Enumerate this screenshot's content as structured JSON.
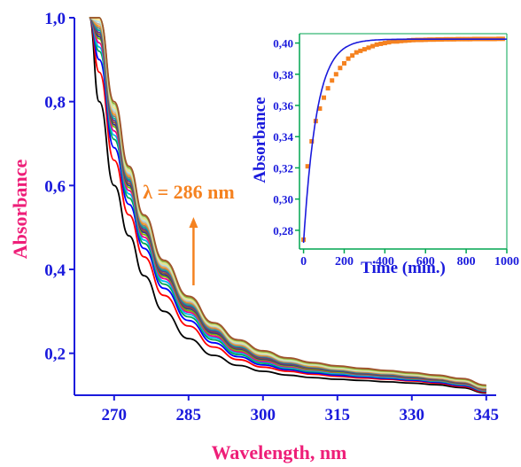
{
  "chart_data": [
    {
      "type": "line",
      "xlabel": "Wavelength, nm",
      "ylabel": "Absorbance",
      "xlim": [
        262,
        347
      ],
      "ylim": [
        0.1,
        1.0
      ],
      "xticks": [
        "270",
        "285",
        "300",
        "315",
        "330",
        "345"
      ],
      "yticks": [
        "0,2",
        "0,4",
        "0,6",
        "0,8",
        "1,0"
      ],
      "annotation": {
        "text": "λ = 286 nm",
        "x": 286,
        "arrow": "up"
      },
      "series_count": 19,
      "series": [
        {
          "color": "#000000",
          "x": [
            265,
            267,
            270,
            273,
            276,
            280,
            285,
            290,
            295,
            300,
            305,
            310,
            315,
            320,
            325,
            330,
            335,
            340,
            345
          ],
          "values": [
            1.0,
            0.8,
            0.6,
            0.48,
            0.385,
            0.3,
            0.235,
            0.195,
            0.171,
            0.157,
            0.148,
            0.142,
            0.138,
            0.135,
            0.132,
            0.129,
            0.125,
            0.118,
            0.105
          ]
        },
        {
          "color": "#ff0000",
          "x": [
            265,
            267,
            270,
            273,
            276,
            280,
            285,
            290,
            295,
            300,
            305,
            310,
            315,
            320,
            325,
            330,
            335,
            340,
            345
          ],
          "values": [
            1.0,
            0.87,
            0.66,
            0.53,
            0.43,
            0.338,
            0.265,
            0.215,
            0.185,
            0.167,
            0.157,
            0.15,
            0.145,
            0.141,
            0.138,
            0.134,
            0.129,
            0.121,
            0.107
          ]
        },
        {
          "color": "#0000ff",
          "x": [
            265,
            267,
            270,
            273,
            276,
            280,
            285,
            290,
            295,
            300,
            305,
            310,
            315,
            320,
            325,
            330,
            335,
            340,
            345
          ],
          "values": [
            1.0,
            0.9,
            0.69,
            0.555,
            0.45,
            0.355,
            0.278,
            0.225,
            0.192,
            0.172,
            0.161,
            0.153,
            0.148,
            0.144,
            0.14,
            0.136,
            0.131,
            0.123,
            0.109
          ]
        },
        {
          "color": "#00a651",
          "x": [
            265,
            267,
            270,
            273,
            276,
            280,
            285,
            290,
            295,
            300,
            305,
            310,
            315,
            320,
            325,
            330,
            335,
            340,
            345
          ],
          "values": [
            1.0,
            0.92,
            0.71,
            0.57,
            0.462,
            0.365,
            0.287,
            0.232,
            0.197,
            0.176,
            0.164,
            0.156,
            0.151,
            0.146,
            0.142,
            0.138,
            0.133,
            0.125,
            0.11
          ]
        },
        {
          "color": "#00b7eb",
          "x": [
            265,
            267,
            270,
            273,
            276,
            280,
            285,
            290,
            295,
            300,
            305,
            310,
            315,
            320,
            325,
            330,
            335,
            340,
            345
          ],
          "values": [
            1.0,
            0.93,
            0.72,
            0.58,
            0.47,
            0.372,
            0.293,
            0.237,
            0.201,
            0.179,
            0.166,
            0.158,
            0.152,
            0.147,
            0.143,
            0.139,
            0.134,
            0.126,
            0.111
          ]
        },
        {
          "color": "#ec008c",
          "x": [
            265,
            267,
            270,
            273,
            276,
            280,
            285,
            290,
            295,
            300,
            305,
            310,
            315,
            320,
            325,
            330,
            335,
            340,
            345
          ],
          "values": [
            1.0,
            0.94,
            0.73,
            0.588,
            0.477,
            0.378,
            0.298,
            0.241,
            0.204,
            0.181,
            0.168,
            0.16,
            0.154,
            0.149,
            0.145,
            0.14,
            0.135,
            0.127,
            0.112
          ]
        },
        {
          "color": "#7fb800",
          "x": [
            265,
            267,
            270,
            273,
            276,
            280,
            285,
            290,
            295,
            300,
            305,
            310,
            315,
            320,
            325,
            330,
            335,
            340,
            345
          ],
          "values": [
            1.0,
            0.95,
            0.74,
            0.595,
            0.483,
            0.383,
            0.302,
            0.245,
            0.207,
            0.184,
            0.17,
            0.161,
            0.155,
            0.15,
            0.146,
            0.141,
            0.136,
            0.128,
            0.113
          ]
        },
        {
          "color": "#2e3192",
          "x": [
            265,
            267,
            270,
            273,
            276,
            280,
            285,
            290,
            295,
            300,
            305,
            310,
            315,
            320,
            325,
            330,
            335,
            340,
            345
          ],
          "values": [
            1.0,
            0.955,
            0.745,
            0.6,
            0.488,
            0.387,
            0.306,
            0.248,
            0.21,
            0.186,
            0.172,
            0.163,
            0.157,
            0.151,
            0.147,
            0.142,
            0.137,
            0.129,
            0.114
          ]
        },
        {
          "color": "#8b5a2b",
          "x": [
            265,
            267,
            270,
            273,
            276,
            280,
            285,
            290,
            295,
            300,
            305,
            310,
            315,
            320,
            325,
            330,
            335,
            340,
            345
          ],
          "values": [
            1.0,
            0.96,
            0.75,
            0.605,
            0.492,
            0.391,
            0.309,
            0.251,
            0.212,
            0.188,
            0.174,
            0.164,
            0.158,
            0.152,
            0.148,
            0.143,
            0.138,
            0.13,
            0.114
          ]
        },
        {
          "color": "#662d91",
          "x": [
            265,
            267,
            270,
            273,
            276,
            280,
            285,
            290,
            295,
            300,
            305,
            310,
            315,
            320,
            325,
            330,
            335,
            340,
            345
          ],
          "values": [
            1.0,
            0.965,
            0.755,
            0.61,
            0.496,
            0.395,
            0.312,
            0.253,
            0.214,
            0.19,
            0.175,
            0.166,
            0.159,
            0.153,
            0.149,
            0.144,
            0.139,
            0.131,
            0.115
          ]
        },
        {
          "color": "#00a99d",
          "x": [
            265,
            267,
            270,
            273,
            276,
            280,
            285,
            290,
            295,
            300,
            305,
            310,
            315,
            320,
            325,
            330,
            335,
            340,
            345
          ],
          "values": [
            1.0,
            0.97,
            0.76,
            0.614,
            0.5,
            0.398,
            0.315,
            0.256,
            0.216,
            0.192,
            0.177,
            0.167,
            0.16,
            0.154,
            0.15,
            0.145,
            0.14,
            0.132,
            0.116
          ]
        },
        {
          "color": "#808080",
          "x": [
            265,
            267,
            270,
            273,
            276,
            280,
            285,
            290,
            295,
            300,
            305,
            310,
            315,
            320,
            325,
            330,
            335,
            340,
            345
          ],
          "values": [
            1.0,
            0.975,
            0.765,
            0.618,
            0.504,
            0.401,
            0.318,
            0.258,
            0.218,
            0.193,
            0.178,
            0.168,
            0.161,
            0.155,
            0.151,
            0.146,
            0.14,
            0.132,
            0.116
          ]
        },
        {
          "color": "#f7941d",
          "x": [
            265,
            267,
            270,
            273,
            276,
            280,
            285,
            290,
            295,
            300,
            305,
            310,
            315,
            320,
            325,
            330,
            335,
            340,
            345
          ],
          "values": [
            1.0,
            0.98,
            0.77,
            0.622,
            0.508,
            0.404,
            0.321,
            0.261,
            0.22,
            0.195,
            0.18,
            0.169,
            0.162,
            0.156,
            0.152,
            0.147,
            0.141,
            0.133,
            0.117
          ]
        },
        {
          "color": "#c7b299",
          "x": [
            265,
            267,
            270,
            273,
            276,
            280,
            285,
            290,
            295,
            300,
            305,
            310,
            315,
            320,
            325,
            330,
            335,
            340,
            345
          ],
          "values": [
            1.0,
            0.985,
            0.775,
            0.626,
            0.512,
            0.407,
            0.323,
            0.263,
            0.222,
            0.197,
            0.181,
            0.171,
            0.163,
            0.157,
            0.153,
            0.148,
            0.142,
            0.134,
            0.118
          ]
        },
        {
          "color": "#b0e0e6",
          "x": [
            265,
            267,
            270,
            273,
            276,
            280,
            285,
            290,
            295,
            300,
            305,
            310,
            315,
            320,
            325,
            330,
            335,
            340,
            345
          ],
          "values": [
            1.0,
            0.99,
            0.78,
            0.63,
            0.516,
            0.41,
            0.326,
            0.265,
            0.224,
            0.198,
            0.182,
            0.172,
            0.164,
            0.158,
            0.154,
            0.149,
            0.143,
            0.135,
            0.119
          ]
        },
        {
          "color": "#f4e287",
          "x": [
            265,
            267,
            270,
            273,
            276,
            280,
            285,
            290,
            295,
            300,
            305,
            310,
            315,
            320,
            325,
            330,
            335,
            340,
            345
          ],
          "values": [
            1.0,
            0.995,
            0.785,
            0.634,
            0.52,
            0.413,
            0.328,
            0.267,
            0.226,
            0.2,
            0.184,
            0.173,
            0.165,
            0.159,
            0.155,
            0.15,
            0.144,
            0.136,
            0.12
          ]
        },
        {
          "color": "#c8e6a0",
          "x": [
            265,
            267,
            270,
            273,
            276,
            280,
            285,
            290,
            295,
            300,
            305,
            310,
            315,
            320,
            325,
            330,
            335,
            340,
            345
          ],
          "values": [
            1.0,
            1.0,
            0.79,
            0.638,
            0.523,
            0.416,
            0.331,
            0.269,
            0.228,
            0.202,
            0.185,
            0.174,
            0.166,
            0.16,
            0.156,
            0.151,
            0.145,
            0.137,
            0.121
          ]
        },
        {
          "color": "#8fb339",
          "x": [
            265,
            267,
            270,
            273,
            276,
            280,
            285,
            290,
            295,
            300,
            305,
            310,
            315,
            320,
            325,
            330,
            335,
            340,
            345
          ],
          "values": [
            1.0,
            1.0,
            0.795,
            0.642,
            0.527,
            0.419,
            0.333,
            0.271,
            0.23,
            0.204,
            0.187,
            0.176,
            0.168,
            0.162,
            0.157,
            0.152,
            0.146,
            0.138,
            0.122
          ]
        },
        {
          "color": "#a0522d",
          "x": [
            265,
            267,
            270,
            273,
            276,
            280,
            285,
            290,
            295,
            300,
            305,
            310,
            315,
            320,
            325,
            330,
            335,
            340,
            345
          ],
          "values": [
            1.0,
            1.0,
            0.8,
            0.646,
            0.53,
            0.422,
            0.336,
            0.273,
            0.232,
            0.206,
            0.189,
            0.178,
            0.17,
            0.164,
            0.159,
            0.154,
            0.148,
            0.14,
            0.124
          ]
        }
      ]
    },
    {
      "type": "scatter",
      "xlabel": "Time (min.)",
      "ylabel": "Absorbance",
      "xlim": [
        -20,
        1000
      ],
      "ylim": [
        0.268,
        0.406
      ],
      "xticks": [
        "0",
        "200",
        "400",
        "600",
        "800",
        "1000"
      ],
      "yticks": [
        "0,28",
        "0,30",
        "0,32",
        "0,34",
        "0,36",
        "0,38",
        "0,40"
      ],
      "points": {
        "color": "#f58220",
        "x": [
          0,
          20,
          40,
          60,
          80,
          100,
          120,
          140,
          160,
          180,
          200,
          220,
          240,
          260,
          280,
          300,
          320,
          340,
          360,
          380,
          400,
          420,
          440,
          460,
          480,
          500,
          520,
          540,
          560,
          580,
          600,
          620,
          640,
          660,
          680,
          700,
          720,
          740,
          760,
          780,
          800,
          820,
          840,
          860,
          880,
          900,
          920,
          940,
          960,
          980
        ],
        "y": [
          0.274,
          0.321,
          0.337,
          0.35,
          0.358,
          0.365,
          0.371,
          0.376,
          0.38,
          0.384,
          0.387,
          0.39,
          0.392,
          0.394,
          0.395,
          0.396,
          0.397,
          0.398,
          0.399,
          0.3995,
          0.4,
          0.4005,
          0.401,
          0.401,
          0.4013,
          0.4015,
          0.4017,
          0.4019,
          0.402,
          0.402,
          0.4021,
          0.4022,
          0.4022,
          0.4023,
          0.4023,
          0.4024,
          0.4024,
          0.4024,
          0.4025,
          0.4025,
          0.4025,
          0.4025,
          0.4026,
          0.4026,
          0.4026,
          0.4026,
          0.4026,
          0.4026,
          0.4027,
          0.4027
        ]
      },
      "fit": {
        "color": "#1a1adc",
        "model": "exponential",
        "y0": 0.272,
        "yinf": 0.4025,
        "k": 0.0155
      }
    }
  ]
}
